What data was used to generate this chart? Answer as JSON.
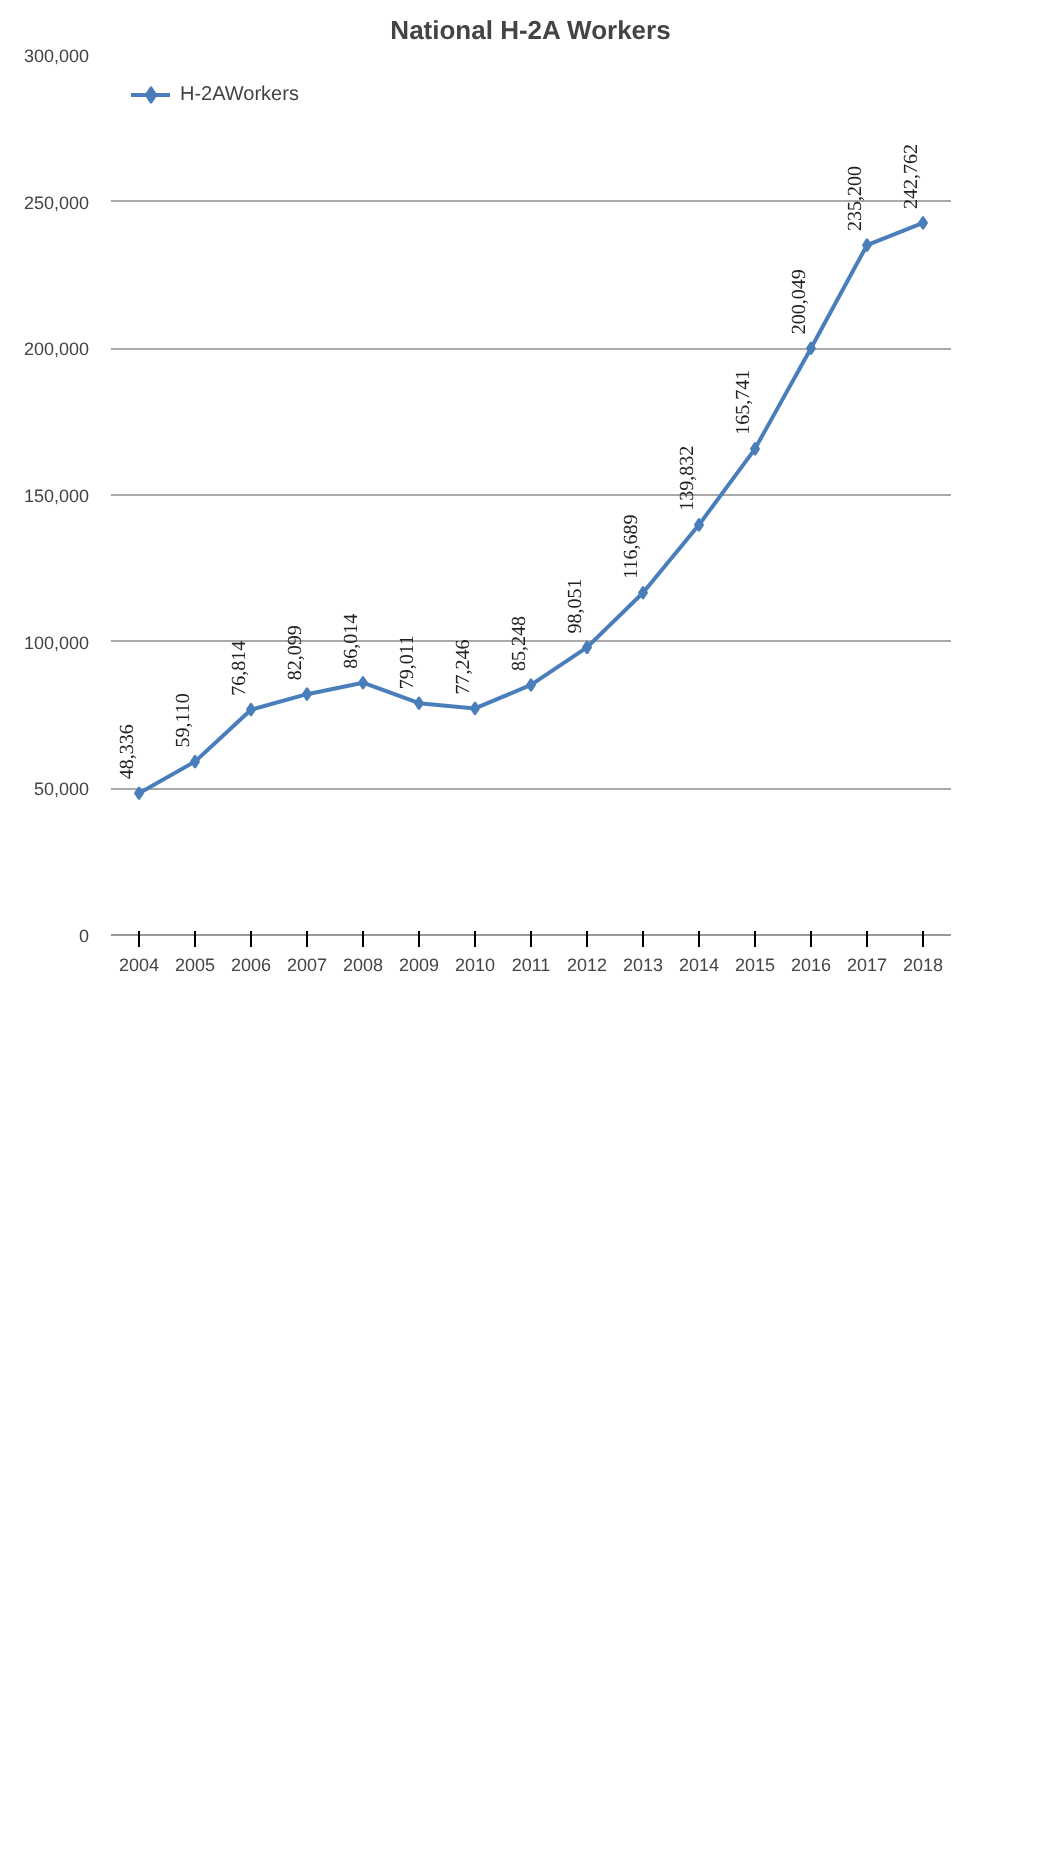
{
  "chart_data": {
    "type": "line",
    "title": "National H-2A Workers",
    "categories": [
      "2004",
      "2005",
      "2006",
      "2007",
      "2008",
      "2009",
      "2010",
      "2011",
      "2012",
      "2013",
      "2014",
      "2015",
      "2016",
      "2017",
      "2018"
    ],
    "series": [
      {
        "name": "H-2AWorkers",
        "color": "#4a7ebb",
        "values": [
          48336,
          59110,
          76814,
          82099,
          86014,
          79011,
          77246,
          85248,
          98051,
          116689,
          139832,
          165741,
          200049,
          235200,
          242762
        ],
        "value_labels": [
          "48,336",
          "59,110",
          "76,814",
          "82,099",
          "86,014",
          "79,011",
          "77,246",
          "85,248",
          "98,051",
          "116,689",
          "139,832",
          "165,741",
          "200,049",
          "235,200",
          "242,762"
        ]
      }
    ],
    "ylim": [
      0,
      300000
    ],
    "yticks": [
      {
        "value": 0,
        "label": "0"
      },
      {
        "value": 50000,
        "label": "50,000"
      },
      {
        "value": 100000,
        "label": "100,000"
      },
      {
        "value": 150000,
        "label": "150,000"
      },
      {
        "value": 200000,
        "label": "200,000"
      },
      {
        "value": 250000,
        "label": "250,000"
      },
      {
        "value": 300000,
        "label": "300,000"
      }
    ],
    "grid": "y",
    "legend": "top left",
    "marker": "diamond",
    "line_style": "solid",
    "data_labels": true
  }
}
